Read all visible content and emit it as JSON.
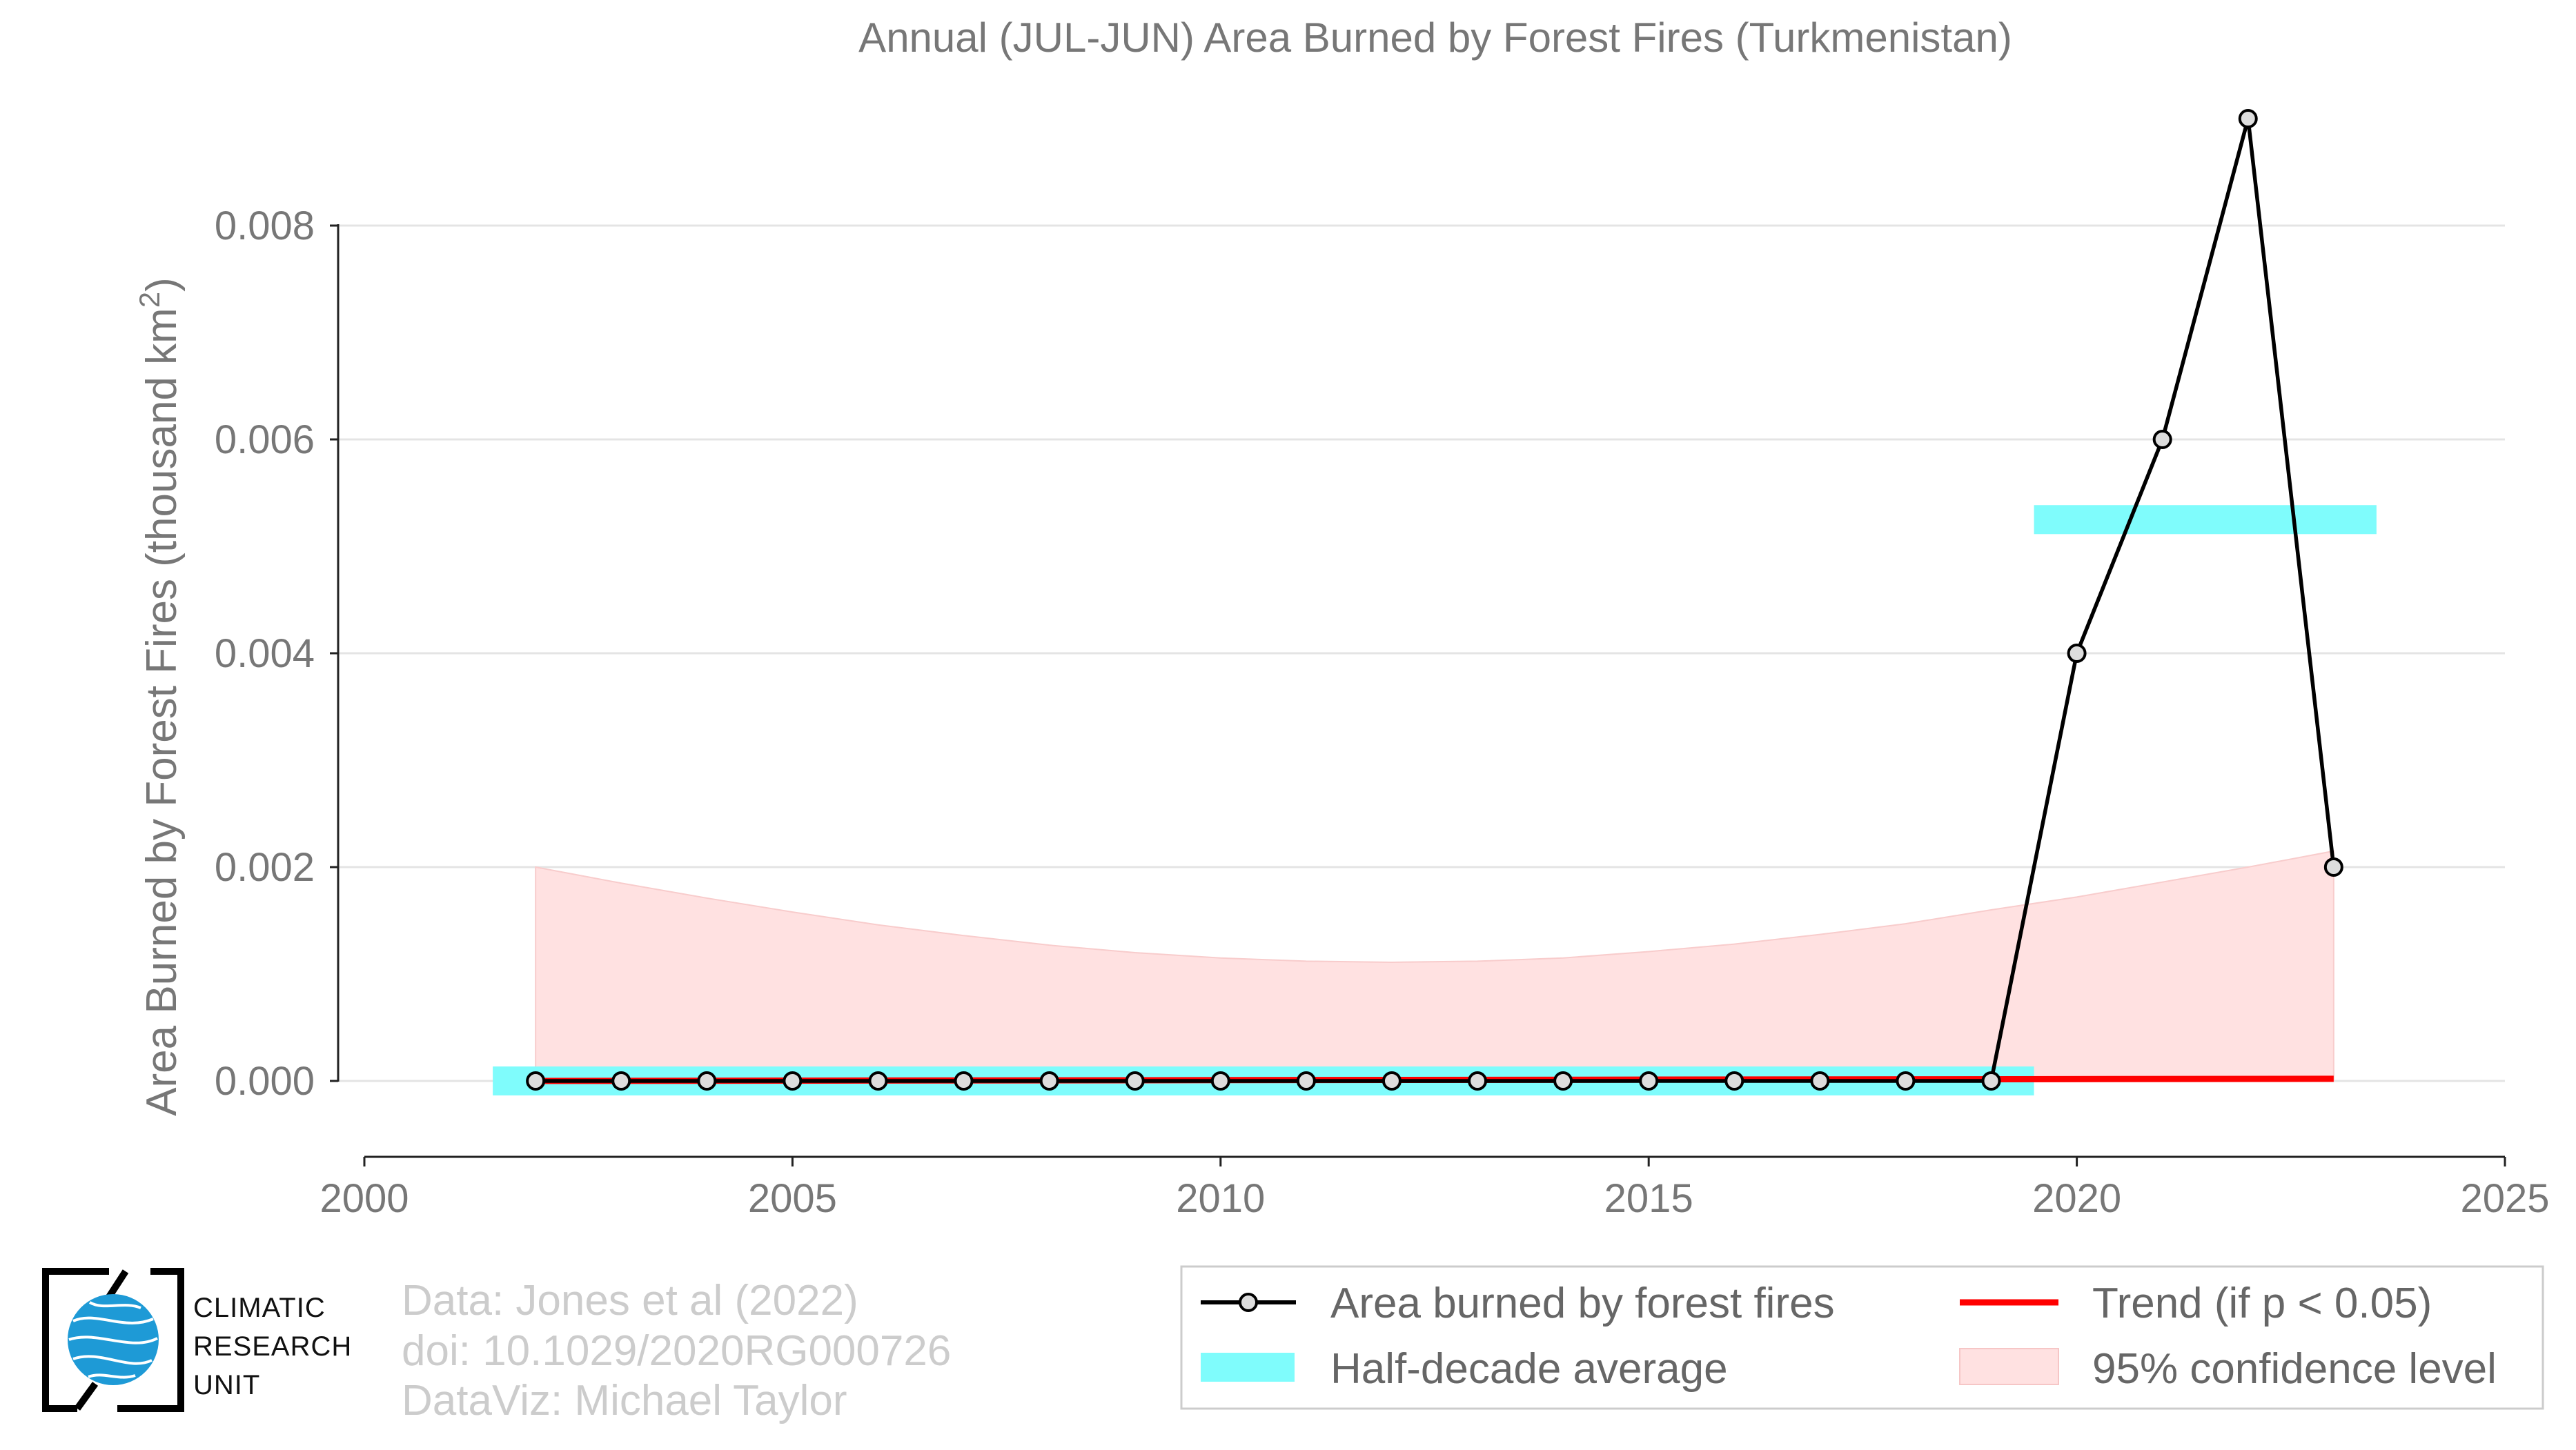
{
  "chart_data": {
    "type": "line",
    "title": "Annual (JUL-JUN) Area Burned by Forest Fires (Turkmenistan)",
    "ylabel": "Area Burned by Forest Fires (thousand km²)",
    "xlabel": "",
    "xlim": [
      2000,
      2025
    ],
    "ylim": [
      -0.0007,
      0.0091
    ],
    "x_ticks": [
      2000,
      2005,
      2010,
      2015,
      2020,
      2025
    ],
    "y_ticks": [
      0.0,
      0.002,
      0.004,
      0.006,
      0.008
    ],
    "y_tick_labels": [
      "0.000",
      "0.002",
      "0.004",
      "0.006",
      "0.008"
    ],
    "grid": "horizontal",
    "legend_position": "bottom-right",
    "series": [
      {
        "name": "Area burned by forest fires",
        "kind": "line-with-markers",
        "color": "#000000",
        "x": [
          2002,
          2003,
          2004,
          2005,
          2006,
          2007,
          2008,
          2009,
          2010,
          2011,
          2012,
          2013,
          2014,
          2015,
          2016,
          2017,
          2018,
          2019,
          2020,
          2021,
          2022,
          2023
        ],
        "y": [
          0,
          0,
          0,
          0,
          0,
          0,
          0,
          0,
          0,
          0,
          0,
          0,
          0,
          0,
          0,
          0,
          0,
          0,
          0.004,
          0.006,
          0.009,
          0.002
        ]
      },
      {
        "name": "Half-decade average",
        "kind": "bars",
        "color": "#7ffcfc",
        "segments": [
          {
            "x_start": 2001.5,
            "x_end": 2019.5,
            "y": 0.0
          },
          {
            "x_start": 2019.5,
            "x_end": 2023.5,
            "y": 0.00525
          }
        ]
      },
      {
        "name": "Trend (if p < 0.05)",
        "kind": "line",
        "color": "#ff0000",
        "x": [
          2002,
          2023
        ],
        "y": [
          0.0,
          2e-05
        ]
      },
      {
        "name": "95% confidence level",
        "kind": "band",
        "color": "#ffe1e1",
        "x": [
          2002,
          2003,
          2004,
          2005,
          2006,
          2007,
          2008,
          2009,
          2010,
          2011,
          2012,
          2013,
          2014,
          2015,
          2016,
          2017,
          2018,
          2019,
          2020,
          2021,
          2022,
          2023
        ],
        "upper": [
          0.002,
          0.00185,
          0.00171,
          0.00158,
          0.00146,
          0.00136,
          0.00127,
          0.0012,
          0.00115,
          0.00112,
          0.00111,
          0.00112,
          0.00115,
          0.00121,
          0.00128,
          0.00137,
          0.00147,
          0.0016,
          0.00172,
          0.00186,
          0.002,
          0.00215
        ],
        "lower": [
          0,
          0,
          0,
          0,
          0,
          0,
          0,
          0,
          0,
          0,
          0,
          0,
          0,
          0,
          0,
          0,
          0,
          0,
          0,
          0,
          0,
          0
        ]
      }
    ]
  },
  "legend": {
    "items": [
      {
        "label": "Area burned by forest fires"
      },
      {
        "label": "Trend (if p < 0.05)"
      },
      {
        "label": "Half-decade average"
      },
      {
        "label": "95% confidence level"
      }
    ]
  },
  "credits": {
    "line1": "Data: Jones et al (2022)",
    "line2": "doi: 10.1029/2020RG000726",
    "line3": "DataViz: Michael Taylor"
  },
  "logo": {
    "line1": "CLIMATIC",
    "line2": "RESEARCH",
    "line3": "UNIT"
  }
}
